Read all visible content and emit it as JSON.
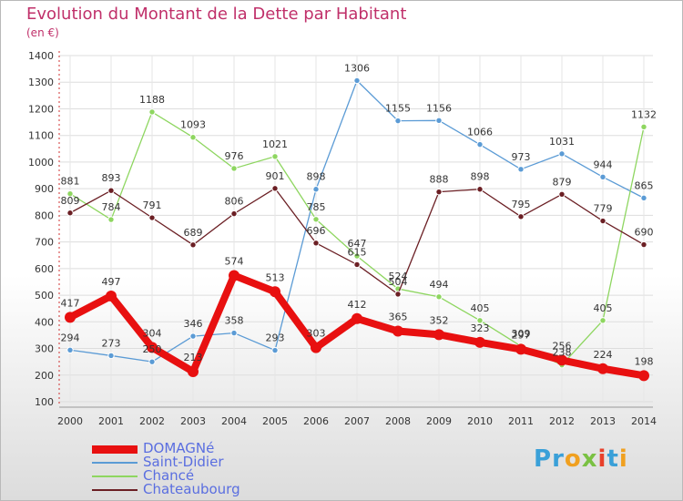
{
  "title": "Evolution du Montant de la Dette par Habitant",
  "unit": "(en €)",
  "brand": {
    "letters": [
      "P",
      "r",
      "o",
      "x",
      "i",
      "t",
      "i"
    ],
    "colors": [
      "#3aa0d8",
      "#3aa0d8",
      "#f0a020",
      "#7ac143",
      "#e8402a",
      "#3aa0d8",
      "#f0a020"
    ]
  },
  "chart_data": {
    "type": "line",
    "title": "Evolution du Montant de la Dette par Habitant",
    "ylabel": "(en €)",
    "xlabel": "",
    "categories": [
      "2000",
      "2001",
      "2002",
      "2003",
      "2004",
      "2005",
      "2006",
      "2007",
      "2008",
      "2009",
      "2010",
      "2011",
      "2012",
      "2013",
      "2014"
    ],
    "ylim": [
      100,
      1400
    ],
    "yticks": [
      100,
      200,
      300,
      400,
      500,
      600,
      700,
      800,
      900,
      1000,
      1100,
      1200,
      1300,
      1400
    ],
    "grid": true,
    "legend_position": "bottom-left",
    "series": [
      {
        "name": "DOMAGNé",
        "color": "#e81010",
        "emphasis": true,
        "values": [
          417,
          497,
          304,
          213,
          574,
          513,
          303,
          412,
          365,
          352,
          323,
          297,
          256,
          224,
          198
        ]
      },
      {
        "name": "Saint-Didier",
        "color": "#5b9bd5",
        "emphasis": false,
        "values": [
          294,
          273,
          250,
          346,
          358,
          293,
          898,
          1306,
          1155,
          1156,
          1066,
          973,
          1031,
          944,
          865
        ]
      },
      {
        "name": "Chancé",
        "color": "#8ed660",
        "emphasis": false,
        "values": [
          881,
          784,
          1188,
          1093,
          976,
          1021,
          785,
          647,
          524,
          494,
          405,
          309,
          238,
          405,
          1132
        ]
      },
      {
        "name": "Chateaubourg",
        "color": "#6b1f24",
        "emphasis": false,
        "values": [
          809,
          893,
          791,
          689,
          806,
          901,
          696,
          615,
          504,
          888,
          898,
          795,
          879,
          779,
          690
        ]
      }
    ]
  }
}
